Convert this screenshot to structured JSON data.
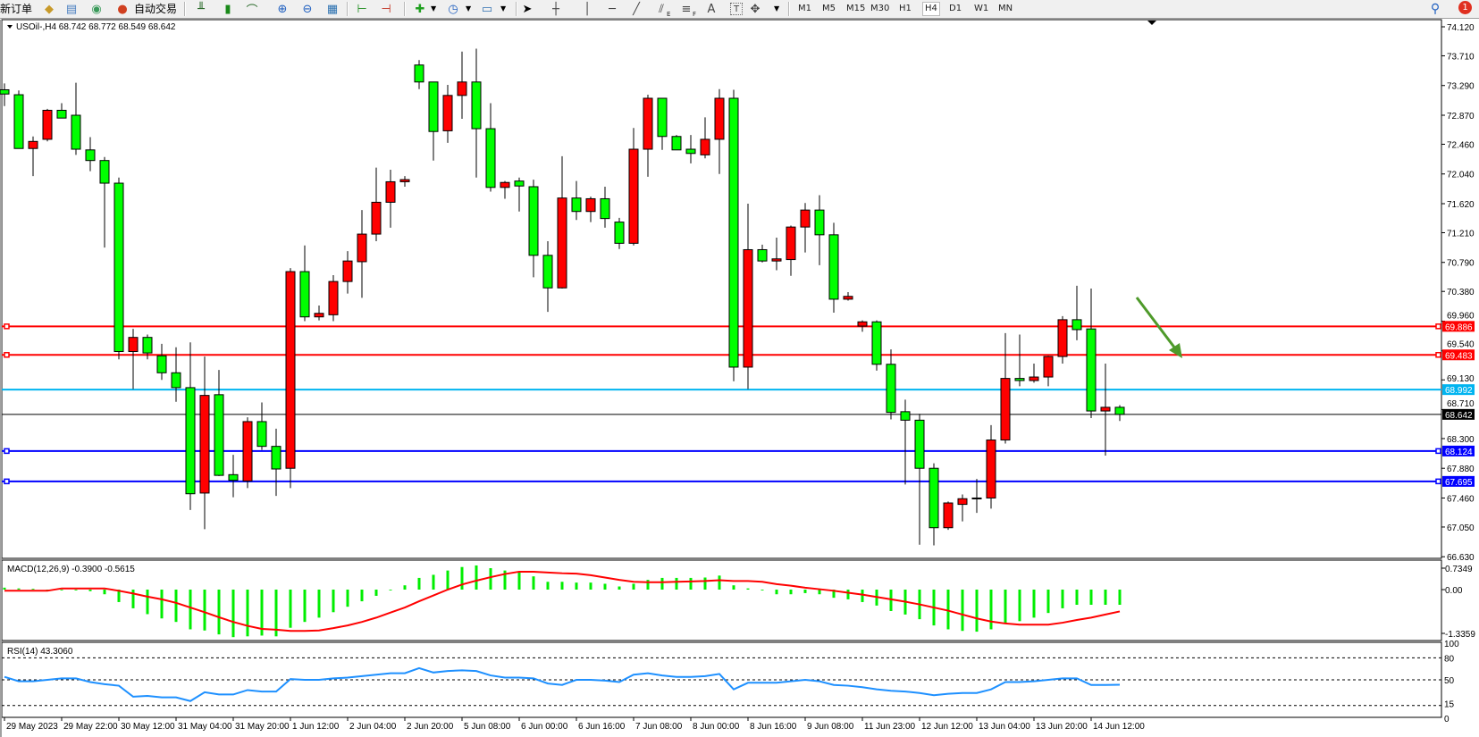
{
  "toolbar": {
    "new_order": "新订单",
    "auto_trading": "自动交易",
    "timeframes": [
      "M1",
      "M5",
      "M15",
      "M30",
      "H1",
      "H4",
      "D1",
      "W1",
      "MN"
    ],
    "active_timeframe": "H4",
    "text_tool": "A",
    "label_tool": "T",
    "fibo_e": "E",
    "fibo_f": "F",
    "notification_count": "1"
  },
  "chart": {
    "header": "USOil-,H4  68.742 68.772 68.549 68.642",
    "colors": {
      "up": "#ff0000",
      "down": "#00ff00",
      "macd_hist": "#00ee00",
      "signal": "#ff0000",
      "rsi": "#1e90ff",
      "arrow": "#4e9a2a"
    },
    "price_ticks": [
      "74.120",
      "73.710",
      "73.290",
      "72.870",
      "72.460",
      "72.040",
      "71.620",
      "71.210",
      "70.790",
      "70.380",
      "69.960",
      "69.540",
      "69.130",
      "68.710",
      "68.300",
      "67.880",
      "67.460",
      "67.050",
      "66.630"
    ],
    "levels": [
      {
        "price": "69.886",
        "color": "#ff0000"
      },
      {
        "price": "69.483",
        "color": "#ff0000"
      },
      {
        "price": "68.992",
        "color": "#00b4f0"
      },
      {
        "price": "68.642",
        "color": "#000000"
      },
      {
        "price": "68.124",
        "color": "#0000ff"
      },
      {
        "price": "67.695",
        "color": "#0000ff"
      }
    ],
    "time_labels": [
      "29 May 2023",
      "29 May 22:00",
      "30 May 12:00",
      "31 May 04:00",
      "31 May 20:00",
      "1 Jun 12:00",
      "2 Jun 04:00",
      "2 Jun 20:00",
      "5 Jun 08:00",
      "6 Jun 00:00",
      "6 Jun 16:00",
      "7 Jun 08:00",
      "8 Jun 00:00",
      "8 Jun 16:00",
      "9 Jun 08:00",
      "11 Jun 23:00",
      "12 Jun 12:00",
      "13 Jun 04:00",
      "13 Jun 20:00",
      "14 Jun 12:00"
    ],
    "macd": {
      "label": "MACD(12,26,9) -0.3900 -0.5615",
      "ticks": [
        "0.7349",
        "0.00",
        "-1.3359"
      ]
    },
    "rsi": {
      "label": "RSI(14) 43.3060",
      "ticks": [
        "100",
        "80",
        "50",
        "15",
        "0"
      ]
    }
  },
  "chart_data": {
    "type": "candlestick",
    "symbol": "USOil-",
    "timeframe": "H4",
    "ylim": [
      66.63,
      74.12
    ],
    "ohlc": [
      [
        73.23,
        73.32,
        73.0,
        73.17
      ],
      [
        73.16,
        73.22,
        72.4,
        72.4
      ],
      [
        72.4,
        72.57,
        72.01,
        72.5
      ],
      [
        72.53,
        72.96,
        72.5,
        72.94
      ],
      [
        72.94,
        73.04,
        72.83,
        72.83
      ],
      [
        72.87,
        73.33,
        72.31,
        72.39
      ],
      [
        72.38,
        72.56,
        72.08,
        72.23
      ],
      [
        72.23,
        72.28,
        71.0,
        71.91
      ],
      [
        71.91,
        71.99,
        69.42,
        69.53
      ],
      [
        69.53,
        69.85,
        69.0,
        69.73
      ],
      [
        69.73,
        69.77,
        69.42,
        69.51
      ],
      [
        69.47,
        69.64,
        69.13,
        69.23
      ],
      [
        69.23,
        69.59,
        68.82,
        69.02
      ],
      [
        69.02,
        69.66,
        67.29,
        67.52
      ],
      [
        67.53,
        69.46,
        67.02,
        68.91
      ],
      [
        68.92,
        69.27,
        67.77,
        67.78
      ],
      [
        67.79,
        68.07,
        67.47,
        67.71
      ],
      [
        67.7,
        68.6,
        67.6,
        68.54
      ],
      [
        68.54,
        68.81,
        68.14,
        68.19
      ],
      [
        68.19,
        68.44,
        67.49,
        67.87
      ],
      [
        67.88,
        70.71,
        67.6,
        70.66
      ],
      [
        70.66,
        71.03,
        69.96,
        70.02
      ],
      [
        70.02,
        70.18,
        69.97,
        70.07
      ],
      [
        70.05,
        70.61,
        69.96,
        70.52
      ],
      [
        70.52,
        70.95,
        70.35,
        70.81
      ],
      [
        70.8,
        71.53,
        70.29,
        71.19
      ],
      [
        71.19,
        72.13,
        71.09,
        71.64
      ],
      [
        71.64,
        72.1,
        71.28,
        71.93
      ],
      [
        71.93,
        72.01,
        71.86,
        71.96
      ],
      [
        73.58,
        73.65,
        73.24,
        73.34
      ],
      [
        73.34,
        73.34,
        72.23,
        72.64
      ],
      [
        72.65,
        73.3,
        72.48,
        73.15
      ],
      [
        73.15,
        73.77,
        72.82,
        73.34
      ],
      [
        73.34,
        73.81,
        71.99,
        72.68
      ],
      [
        72.68,
        73.04,
        71.79,
        71.85
      ],
      [
        71.85,
        71.94,
        71.69,
        71.92
      ],
      [
        71.94,
        71.99,
        71.51,
        71.87
      ],
      [
        71.86,
        71.96,
        70.58,
        70.89
      ],
      [
        70.89,
        71.09,
        70.09,
        70.43
      ],
      [
        70.43,
        72.29,
        70.42,
        71.7
      ],
      [
        71.7,
        71.94,
        71.39,
        71.51
      ],
      [
        71.51,
        71.72,
        71.36,
        71.69
      ],
      [
        71.69,
        71.86,
        71.28,
        71.41
      ],
      [
        71.36,
        71.42,
        70.98,
        71.06
      ],
      [
        71.06,
        72.69,
        71.03,
        72.39
      ],
      [
        72.39,
        73.16,
        72.0,
        73.11
      ],
      [
        73.11,
        73.11,
        72.38,
        72.57
      ],
      [
        72.57,
        72.59,
        72.38,
        72.38
      ],
      [
        72.39,
        72.59,
        72.19,
        72.33
      ],
      [
        72.31,
        72.84,
        72.26,
        72.53
      ],
      [
        72.53,
        73.24,
        72.04,
        73.11
      ],
      [
        73.11,
        73.23,
        69.11,
        69.31
      ],
      [
        69.31,
        71.62,
        69.0,
        70.97
      ],
      [
        70.97,
        71.04,
        70.79,
        70.81
      ],
      [
        70.81,
        71.14,
        70.68,
        70.84
      ],
      [
        70.83,
        71.31,
        70.6,
        71.29
      ],
      [
        71.29,
        71.63,
        70.93,
        71.53
      ],
      [
        71.53,
        71.74,
        70.75,
        71.18
      ],
      [
        71.18,
        71.35,
        70.08,
        70.27
      ],
      [
        70.27,
        70.37,
        70.25,
        70.31
      ],
      [
        69.89,
        69.97,
        69.81,
        69.95
      ],
      [
        69.95,
        69.97,
        69.26,
        69.35
      ],
      [
        69.35,
        69.56,
        68.57,
        68.67
      ],
      [
        68.68,
        68.85,
        67.65,
        68.56
      ],
      [
        68.56,
        68.65,
        66.8,
        67.88
      ],
      [
        67.88,
        67.95,
        66.79,
        67.04
      ],
      [
        67.04,
        67.41,
        67.01,
        67.39
      ],
      [
        67.37,
        67.51,
        67.13,
        67.45
      ],
      [
        67.45,
        67.73,
        67.25,
        67.46
      ],
      [
        67.46,
        68.49,
        67.31,
        68.28
      ],
      [
        68.28,
        69.79,
        68.23,
        69.15
      ],
      [
        69.15,
        69.77,
        69.04,
        69.12
      ],
      [
        69.12,
        69.36,
        69.09,
        69.17
      ],
      [
        69.17,
        69.47,
        69.04,
        69.46
      ],
      [
        69.46,
        70.03,
        69.36,
        69.98
      ],
      [
        69.98,
        70.46,
        69.69,
        69.84
      ],
      [
        69.85,
        70.42,
        68.59,
        68.69
      ],
      [
        68.69,
        69.36,
        68.06,
        68.742
      ],
      [
        68.742,
        68.772,
        68.549,
        68.642
      ]
    ],
    "macd_histogram": [
      0.05,
      0.03,
      0.02,
      0,
      -0.02,
      -0.02,
      -0.04,
      -0.12,
      -0.32,
      -0.48,
      -0.63,
      -0.74,
      -0.83,
      -1.02,
      -1.05,
      -1.15,
      -1.22,
      -1.2,
      -1.18,
      -1.2,
      -0.98,
      -0.83,
      -0.72,
      -0.58,
      -0.44,
      -0.3,
      -0.16,
      -0.02,
      0.11,
      0.3,
      0.38,
      0.49,
      0.58,
      0.62,
      0.55,
      0.49,
      0.45,
      0.34,
      0.2,
      0.2,
      0.18,
      0.18,
      0.15,
      0.08,
      0.15,
      0.25,
      0.3,
      0.3,
      0.3,
      0.31,
      0.36,
      0.11,
      0.03,
      -0.02,
      -0.12,
      -0.12,
      -0.09,
      -0.12,
      -0.21,
      -0.25,
      -0.32,
      -0.41,
      -0.55,
      -0.64,
      -0.76,
      -0.92,
      -1.02,
      -1.06,
      -1.08,
      -1.02,
      -0.85,
      -0.81,
      -0.72,
      -0.6,
      -0.48,
      -0.39,
      -0.39,
      -0.39,
      -0.39
    ],
    "macd_signal": [
      -0.03,
      -0.03,
      -0.03,
      -0.03,
      0.03,
      0.03,
      0.03,
      0.03,
      -0.03,
      -0.1,
      -0.18,
      -0.25,
      -0.34,
      -0.46,
      -0.58,
      -0.71,
      -0.83,
      -0.93,
      -1.01,
      -1.03,
      -1.06,
      -1.06,
      -1.05,
      -0.99,
      -0.92,
      -0.83,
      -0.72,
      -0.59,
      -0.46,
      -0.3,
      -0.15,
      0,
      0.13,
      0.23,
      0.32,
      0.4,
      0.46,
      0.46,
      0.44,
      0.42,
      0.41,
      0.37,
      0.31,
      0.25,
      0.2,
      0.19,
      0.19,
      0.2,
      0.21,
      0.22,
      0.24,
      0.22,
      0.22,
      0.2,
      0.14,
      0.1,
      0.05,
      0.01,
      -0.03,
      -0.08,
      -0.13,
      -0.19,
      -0.25,
      -0.31,
      -0.38,
      -0.46,
      -0.54,
      -0.64,
      -0.74,
      -0.82,
      -0.87,
      -0.9,
      -0.9,
      -0.9,
      -0.85,
      -0.78,
      -0.72,
      -0.64,
      -0.56
    ],
    "macd_ylim": [
      -1.3359,
      0.7349
    ],
    "rsi": [
      54,
      48,
      48,
      50,
      52,
      52,
      47,
      44,
      42,
      27,
      28,
      26,
      26,
      21,
      33,
      30,
      30,
      36,
      34,
      34,
      51,
      50,
      50,
      52,
      53,
      55,
      57,
      59,
      59,
      66,
      60,
      62,
      63,
      62,
      56,
      53,
      53,
      52,
      45,
      43,
      50,
      50,
      49,
      47,
      57,
      59,
      56,
      54,
      54,
      55,
      58,
      37,
      46,
      46,
      46,
      48,
      50,
      48,
      43,
      42,
      40,
      37,
      35,
      34,
      32,
      29,
      31,
      32,
      32,
      37,
      47,
      47,
      48,
      50,
      52,
      52,
      43,
      43,
      43.306
    ],
    "rsi_levels": [
      80,
      50,
      15
    ],
    "rsi_ylim": [
      0,
      100
    ]
  }
}
